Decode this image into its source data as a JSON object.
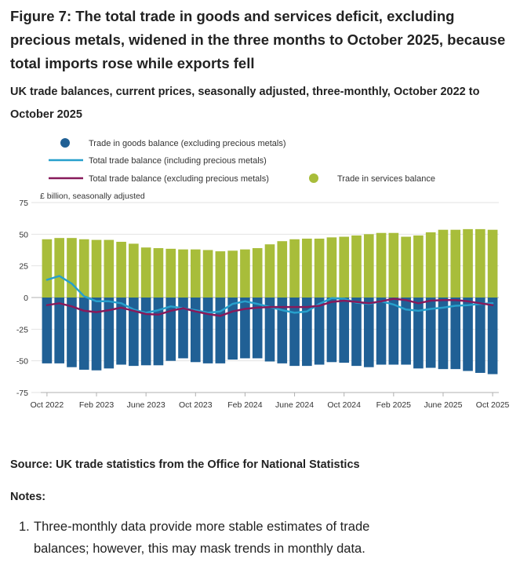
{
  "figure": {
    "title": "Figure 7: The total trade in goods and services deficit, excluding precious metals, widened in the three months to October 2025, because total imports rose while exports fell",
    "subtitle": "UK trade balances, current prices, seasonally adjusted, three-monthly, October 2022 to October 2025"
  },
  "chart_data": {
    "type": "bar",
    "y_axis_label": "£ billion, seasonally adjusted",
    "ylim": [
      -75,
      75
    ],
    "y_ticks": [
      "75",
      "50",
      "25",
      "0",
      "-25",
      "-50",
      "-75"
    ],
    "x_tick_labels": [
      "Oct 2022",
      "Feb 2023",
      "June 2023",
      "Oct 2023",
      "Feb 2024",
      "June 2024",
      "Oct 2024",
      "Feb 2025",
      "June 2025",
      "Oct 2025"
    ],
    "grid": true,
    "legend_position": "top",
    "x": [
      "Oct 2022",
      "Nov 2022",
      "Dec 2022",
      "Jan 2023",
      "Feb 2023",
      "Mar 2023",
      "Apr 2023",
      "May 2023",
      "Jun 2023",
      "Jul 2023",
      "Aug 2023",
      "Sep 2023",
      "Oct 2023",
      "Nov 2023",
      "Dec 2023",
      "Jan 2024",
      "Feb 2024",
      "Mar 2024",
      "Apr 2024",
      "May 2024",
      "Jun 2024",
      "Jul 2024",
      "Aug 2024",
      "Sep 2024",
      "Oct 2024",
      "Nov 2024",
      "Dec 2024",
      "Jan 2025",
      "Feb 2025",
      "Mar 2025",
      "Apr 2025",
      "May 2025",
      "Jun 2025",
      "Jul 2025",
      "Aug 2025",
      "Sep 2025",
      "Oct 2025"
    ],
    "series": [
      {
        "name": "Trade in goods balance (excluding precious metals)",
        "kind": "bar",
        "color": "#206095",
        "values": [
          -52,
          -52,
          -55,
          -57,
          -57.5,
          -56,
          -53,
          -54,
          -53.5,
          -53.5,
          -50,
          -48,
          -51,
          -52,
          -52,
          -49,
          -48,
          -48,
          -50.5,
          -52,
          -54,
          -54,
          -53,
          -51,
          -51.5,
          -54,
          -55,
          -53,
          -53,
          -53,
          -56,
          -55.5,
          -56.5,
          -56.5,
          -58,
          -59.5,
          -60.5
        ]
      },
      {
        "name": "Trade in services balance",
        "kind": "bar",
        "color": "#a8bd3a",
        "values": [
          46,
          47,
          47,
          46,
          45.5,
          45.5,
          44,
          42.5,
          39.5,
          39,
          38.5,
          38,
          38,
          37.5,
          36.5,
          37,
          38,
          39,
          42,
          44.5,
          46,
          46.5,
          46.5,
          47.5,
          48,
          49,
          50,
          51,
          51,
          48,
          49,
          51.5,
          53.5,
          53.5,
          54,
          54,
          53.5
        ]
      },
      {
        "name": "Total trade balance (including precious metals)",
        "kind": "line",
        "color": "#27a0cc",
        "values": [
          14,
          17,
          11,
          1,
          -3,
          -3,
          -4.5,
          -9.5,
          -12,
          -10,
          -7,
          -8.5,
          -10,
          -12,
          -11,
          -5,
          -3,
          -5,
          -7.5,
          -10,
          -12,
          -11,
          -5,
          -0.5,
          -1,
          -4,
          -5,
          -3,
          -5.5,
          -9.5,
          -10.5,
          -9,
          -8,
          -6.5,
          -6,
          -5,
          -4.5
        ]
      },
      {
        "name": "Total trade balance (excluding precious metals)",
        "kind": "line",
        "color": "#871a5b",
        "values": [
          -6,
          -4.5,
          -7,
          -10.5,
          -11.5,
          -10,
          -8,
          -10.5,
          -13,
          -13.5,
          -10.5,
          -8.5,
          -11,
          -13,
          -14.5,
          -11,
          -9,
          -8,
          -7.5,
          -7.5,
          -7.5,
          -7.5,
          -6.5,
          -3.5,
          -2.5,
          -3.5,
          -4.5,
          -3,
          -1,
          -2,
          -4.5,
          -2.5,
          -2,
          -2,
          -3,
          -4.5,
          -6
        ]
      }
    ]
  },
  "source": "Source: UK trade statistics from the Office for National Statistics",
  "notes": {
    "heading": "Notes:",
    "items": [
      {
        "number": "1.",
        "text": "Three-monthly data provide more stable estimates of trade balances; however, this may mask trends in monthly data."
      }
    ]
  }
}
